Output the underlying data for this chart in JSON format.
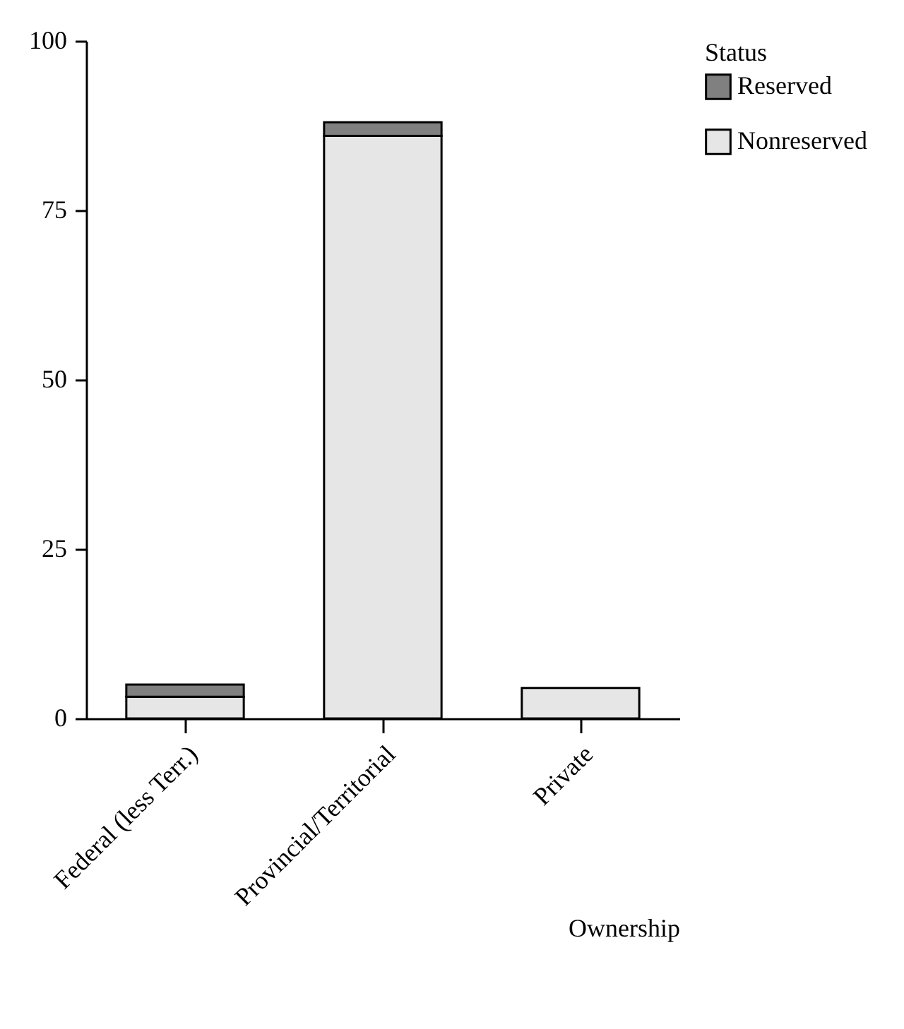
{
  "chart_data": {
    "type": "bar",
    "stacked": true,
    "xlabel": "Ownership",
    "legend_title": "Status",
    "legend": "right",
    "grid": false,
    "categories": [
      "Federal (less Terr.)",
      "Provincial/Territorial",
      "Private"
    ],
    "series": [
      {
        "name": "Nonreserved",
        "color": "#e6e6e6",
        "values": [
          3.2,
          86,
          4.5
        ]
      },
      {
        "name": "Reserved",
        "color": "#808080",
        "values": [
          1.8,
          2,
          null
        ]
      }
    ],
    "ylim": [
      0,
      100
    ],
    "yticks": [
      0,
      25,
      50,
      75,
      100
    ]
  }
}
